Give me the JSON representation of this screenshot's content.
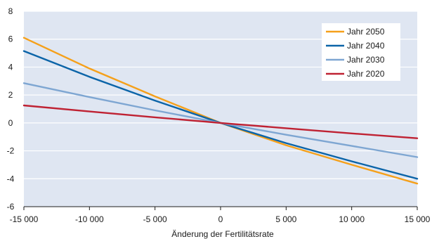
{
  "chart_data": {
    "type": "line",
    "title": "",
    "xlabel": "Änderung der Fertilitätsrate",
    "ylabel": "",
    "xlim": [
      -15000,
      15000
    ],
    "ylim": [
      -6,
      8
    ],
    "x_ticks": [
      -15000,
      -10000,
      -5000,
      0,
      5000,
      10000,
      15000
    ],
    "x_tick_labels": [
      "-15 000",
      "-10 000",
      "-5 000",
      "0",
      "5 000",
      "10 000",
      "15 000"
    ],
    "y_ticks": [
      -6,
      -4,
      -2,
      0,
      2,
      4,
      6,
      8
    ],
    "y_tick_labels": [
      "-6",
      "-4",
      "-2",
      "0",
      "2",
      "4",
      "6",
      "8"
    ],
    "grid": "horizontal",
    "legend_position": "top-right",
    "plot_background": "#dfe6f2",
    "series": [
      {
        "name": "Jahr 2050",
        "color": "#f5a01a",
        "x": [
          -15000,
          -10000,
          -5000,
          0,
          5000,
          10000,
          15000
        ],
        "values": [
          6.1,
          3.9,
          1.9,
          0.0,
          -1.6,
          -3.0,
          -4.35
        ]
      },
      {
        "name": "Jahr 2040",
        "color": "#0b64a8",
        "x": [
          -15000,
          -10000,
          -5000,
          0,
          5000,
          10000,
          15000
        ],
        "values": [
          5.15,
          3.3,
          1.6,
          0.0,
          -1.45,
          -2.75,
          -4.0
        ]
      },
      {
        "name": "Jahr 2030",
        "color": "#7ea6d2",
        "x": [
          -15000,
          -10000,
          -5000,
          0,
          5000,
          10000,
          15000
        ],
        "values": [
          2.85,
          1.85,
          0.9,
          0.0,
          -0.85,
          -1.65,
          -2.45
        ]
      },
      {
        "name": "Jahr 2020",
        "color": "#bf2233",
        "x": [
          -15000,
          -10000,
          -5000,
          0,
          5000,
          10000,
          15000
        ],
        "values": [
          1.25,
          0.82,
          0.4,
          0.0,
          -0.38,
          -0.75,
          -1.1
        ]
      }
    ]
  }
}
